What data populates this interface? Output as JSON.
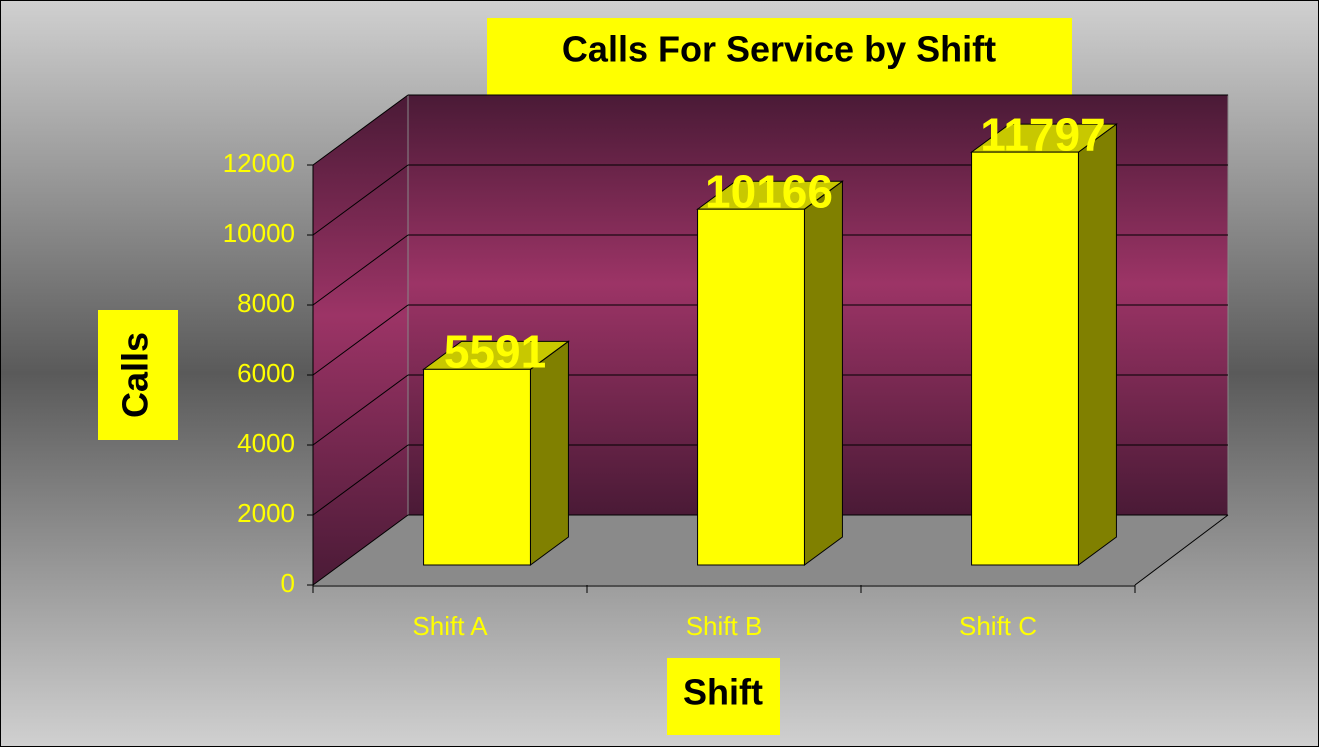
{
  "chart_data": {
    "type": "bar3d",
    "title": "Calls For Service by Shift",
    "x_label": "Shift",
    "y_label": "Calls",
    "categories": [
      "Shift A",
      "Shift B",
      "Shift C"
    ],
    "values": [
      5591,
      10166,
      11797
    ],
    "color": "#ffff00",
    "ylim": [
      0,
      12000
    ],
    "yticks": [
      0,
      2000,
      4000,
      6000,
      8000,
      10000,
      12000
    ],
    "grid": true
  }
}
